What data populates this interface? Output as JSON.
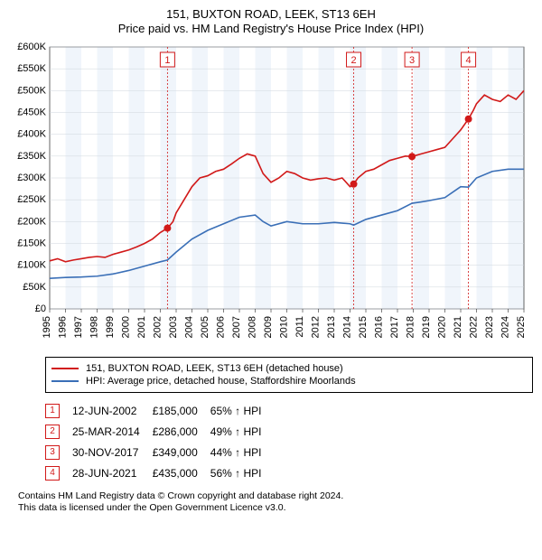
{
  "title_line1": "151, BUXTON ROAD, LEEK, ST13 6EH",
  "title_line2": "Price paid vs. HM Land Registry's House Price Index (HPI)",
  "chart": {
    "type": "line",
    "xlim": [
      1995,
      2025
    ],
    "ylim": [
      0,
      600000
    ],
    "ytick_step": 50000,
    "y_ticks": [
      "£0",
      "£50K",
      "£100K",
      "£150K",
      "£200K",
      "£250K",
      "£300K",
      "£350K",
      "£400K",
      "£450K",
      "£500K",
      "£550K",
      "£600K"
    ],
    "x_ticks": [
      "1995",
      "1996",
      "1997",
      "1998",
      "1999",
      "2000",
      "2001",
      "2002",
      "2003",
      "2004",
      "2005",
      "2006",
      "2007",
      "2008",
      "2009",
      "2010",
      "2011",
      "2012",
      "2013",
      "2014",
      "2015",
      "2016",
      "2017",
      "2018",
      "2019",
      "2020",
      "2021",
      "2022",
      "2023",
      "2024",
      "2025"
    ],
    "background_color": "#ffffff",
    "band_color": "#f0f5fb",
    "gridline_color": "#cfd6dc",
    "marker_line_color": "#d11919",
    "marker_box_border": "#d11919",
    "marker_box_text": "#d11919",
    "series_property": {
      "color": "#d11919",
      "label": "151, BUXTON ROAD, LEEK, ST13 6EH (detached house)",
      "data": [
        [
          1995.0,
          110000
        ],
        [
          1995.5,
          115000
        ],
        [
          1996.0,
          108000
        ],
        [
          1996.5,
          112000
        ],
        [
          1997.0,
          115000
        ],
        [
          1997.5,
          118000
        ],
        [
          1998.0,
          120000
        ],
        [
          1998.5,
          118000
        ],
        [
          1999.0,
          125000
        ],
        [
          1999.5,
          130000
        ],
        [
          2000.0,
          135000
        ],
        [
          2000.5,
          142000
        ],
        [
          2001.0,
          150000
        ],
        [
          2001.5,
          160000
        ],
        [
          2002.0,
          175000
        ],
        [
          2002.45,
          185000
        ],
        [
          2002.8,
          200000
        ],
        [
          2003.0,
          220000
        ],
        [
          2003.5,
          250000
        ],
        [
          2004.0,
          280000
        ],
        [
          2004.5,
          300000
        ],
        [
          2005.0,
          305000
        ],
        [
          2005.5,
          315000
        ],
        [
          2006.0,
          320000
        ],
        [
          2006.5,
          332000
        ],
        [
          2007.0,
          345000
        ],
        [
          2007.5,
          355000
        ],
        [
          2008.0,
          350000
        ],
        [
          2008.5,
          310000
        ],
        [
          2009.0,
          290000
        ],
        [
          2009.5,
          300000
        ],
        [
          2010.0,
          315000
        ],
        [
          2010.5,
          310000
        ],
        [
          2011.0,
          300000
        ],
        [
          2011.5,
          295000
        ],
        [
          2012.0,
          298000
        ],
        [
          2012.5,
          300000
        ],
        [
          2013.0,
          295000
        ],
        [
          2013.5,
          300000
        ],
        [
          2014.0,
          280000
        ],
        [
          2014.23,
          286000
        ],
        [
          2014.5,
          300000
        ],
        [
          2015.0,
          315000
        ],
        [
          2015.5,
          320000
        ],
        [
          2016.0,
          330000
        ],
        [
          2016.5,
          340000
        ],
        [
          2017.0,
          345000
        ],
        [
          2017.5,
          350000
        ],
        [
          2017.92,
          349000
        ],
        [
          2018.5,
          355000
        ],
        [
          2019.0,
          360000
        ],
        [
          2019.5,
          365000
        ],
        [
          2020.0,
          370000
        ],
        [
          2020.5,
          390000
        ],
        [
          2021.0,
          410000
        ],
        [
          2021.49,
          435000
        ],
        [
          2021.8,
          455000
        ],
        [
          2022.0,
          470000
        ],
        [
          2022.5,
          490000
        ],
        [
          2023.0,
          480000
        ],
        [
          2023.5,
          475000
        ],
        [
          2024.0,
          490000
        ],
        [
          2024.5,
          480000
        ],
        [
          2025.0,
          500000
        ]
      ]
    },
    "series_hpi": {
      "color": "#3a6fb7",
      "label": "HPI: Average price, detached house, Staffordshire Moorlands",
      "data": [
        [
          1995.0,
          70000
        ],
        [
          1996.0,
          72000
        ],
        [
          1997.0,
          73000
        ],
        [
          1998.0,
          75000
        ],
        [
          1999.0,
          80000
        ],
        [
          2000.0,
          88000
        ],
        [
          2001.0,
          98000
        ],
        [
          2002.0,
          108000
        ],
        [
          2002.45,
          112000
        ],
        [
          2003.0,
          130000
        ],
        [
          2004.0,
          160000
        ],
        [
          2005.0,
          180000
        ],
        [
          2006.0,
          195000
        ],
        [
          2007.0,
          210000
        ],
        [
          2008.0,
          215000
        ],
        [
          2008.5,
          200000
        ],
        [
          2009.0,
          190000
        ],
        [
          2010.0,
          200000
        ],
        [
          2011.0,
          195000
        ],
        [
          2012.0,
          195000
        ],
        [
          2013.0,
          198000
        ],
        [
          2014.0,
          195000
        ],
        [
          2014.23,
          192000
        ],
        [
          2015.0,
          205000
        ],
        [
          2016.0,
          215000
        ],
        [
          2017.0,
          225000
        ],
        [
          2017.92,
          242000
        ],
        [
          2018.5,
          245000
        ],
        [
          2019.0,
          248000
        ],
        [
          2020.0,
          255000
        ],
        [
          2021.0,
          280000
        ],
        [
          2021.49,
          279000
        ],
        [
          2022.0,
          300000
        ],
        [
          2023.0,
          315000
        ],
        [
          2024.0,
          320000
        ],
        [
          2025.0,
          320000
        ]
      ]
    },
    "markers": [
      {
        "n": "1",
        "x": 2002.45,
        "y": 185000
      },
      {
        "n": "2",
        "x": 2014.23,
        "y": 286000
      },
      {
        "n": "3",
        "x": 2017.92,
        "y": 349000
      },
      {
        "n": "4",
        "x": 2021.49,
        "y": 435000
      }
    ],
    "label_fontsize": 11,
    "title_fontsize": 13
  },
  "transactions": [
    {
      "n": "1",
      "date": "12-JUN-2002",
      "price": "£185,000",
      "pct": "65% ↑ HPI"
    },
    {
      "n": "2",
      "date": "25-MAR-2014",
      "price": "£286,000",
      "pct": "49% ↑ HPI"
    },
    {
      "n": "3",
      "date": "30-NOV-2017",
      "price": "£349,000",
      "pct": "44% ↑ HPI"
    },
    {
      "n": "4",
      "date": "28-JUN-2021",
      "price": "£435,000",
      "pct": "56% ↑ HPI"
    }
  ],
  "footer_line1": "Contains HM Land Registry data © Crown copyright and database right 2024.",
  "footer_line2": "This data is licensed under the Open Government Licence v3.0."
}
